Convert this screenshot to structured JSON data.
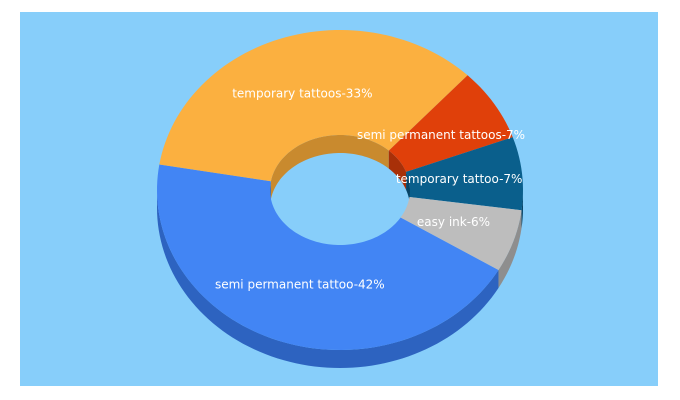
{
  "chart_data": {
    "type": "donut3d",
    "values": [
      42,
      33,
      7,
      7,
      6
    ],
    "value_labels": [
      "semi permanent tattoo-42%",
      "temporary tattoos-33%",
      "semi permanent tattoos-7%",
      "temporary tattoo-7%",
      "easy ink-6%"
    ],
    "colors": [
      "#4285f4",
      "#fbb040",
      "#e0400a",
      "#0a5f8c",
      "#bdbdbd"
    ],
    "side_colors": [
      "#2d63c0",
      "#c98a2e",
      "#a83008",
      "#074466",
      "#8e8e8e"
    ],
    "background": "#87cefa"
  }
}
